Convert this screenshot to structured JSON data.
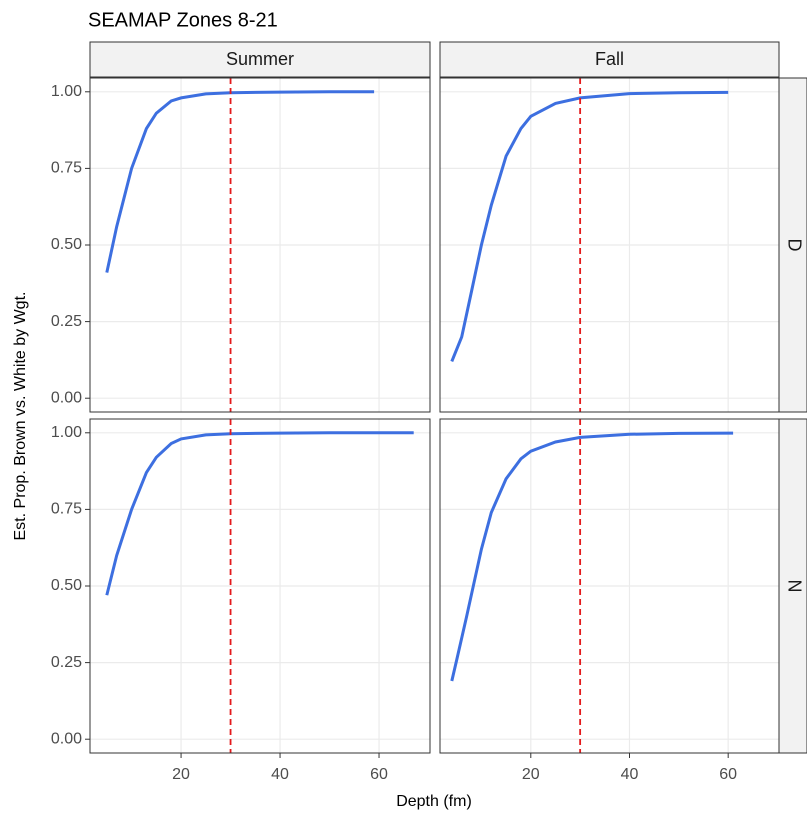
{
  "chart_data": {
    "type": "line",
    "title": "SEAMAP Zones 8-21",
    "x_label": "Depth (fm)",
    "y_label": "Est. Prop. Brown vs. White by Wgt.",
    "row_labels": [
      "D",
      "N"
    ],
    "color": "#3d6fe0",
    "reference_line": {
      "x": 30,
      "color": "#e41a1c"
    },
    "grid": true,
    "xlim": [
      1.6,
      70.3
    ],
    "ylim": [
      -0.045,
      1.045
    ],
    "xticks": [
      20,
      40,
      60
    ],
    "yticks": [
      {
        "value": 0,
        "label": "0.00"
      },
      {
        "value": 0.25,
        "label": "0.25"
      },
      {
        "value": 0.5,
        "label": "0.50"
      },
      {
        "value": 0.75,
        "label": "0.75"
      },
      {
        "value": 1,
        "label": "1.00"
      }
    ],
    "columns": [
      {
        "label": "Summer",
        "panels": [
          {
            "x": [
              5,
              7,
              10,
              13,
              15,
              18,
              20,
              25,
              30,
              40,
              50,
              59
            ],
            "values": [
              0.41,
              0.56,
              0.75,
              0.88,
              0.93,
              0.97,
              0.98,
              0.993,
              0.997,
              0.999,
              1.0,
              1.0
            ]
          },
          {
            "x": [
              5,
              7,
              10,
              13,
              15,
              18,
              20,
              25,
              30,
              40,
              50,
              67
            ],
            "values": [
              0.47,
              0.6,
              0.75,
              0.87,
              0.92,
              0.965,
              0.98,
              0.993,
              0.997,
              0.999,
              1.0,
              1.0
            ]
          }
        ]
      },
      {
        "label": "Fall",
        "panels": [
          {
            "x": [
              4,
              6,
              8,
              10,
              12,
              15,
              18,
              20,
              25,
              30,
              40,
              50,
              60
            ],
            "values": [
              0.12,
              0.2,
              0.35,
              0.5,
              0.63,
              0.79,
              0.88,
              0.92,
              0.962,
              0.98,
              0.994,
              0.997,
              0.998
            ]
          },
          {
            "x": [
              4,
              5,
              7,
              10,
              12,
              15,
              18,
              20,
              25,
              30,
              40,
              50,
              61
            ],
            "values": [
              0.19,
              0.26,
              0.4,
              0.62,
              0.74,
              0.85,
              0.915,
              0.94,
              0.97,
              0.985,
              0.995,
              0.998,
              0.999
            ]
          }
        ]
      }
    ]
  }
}
